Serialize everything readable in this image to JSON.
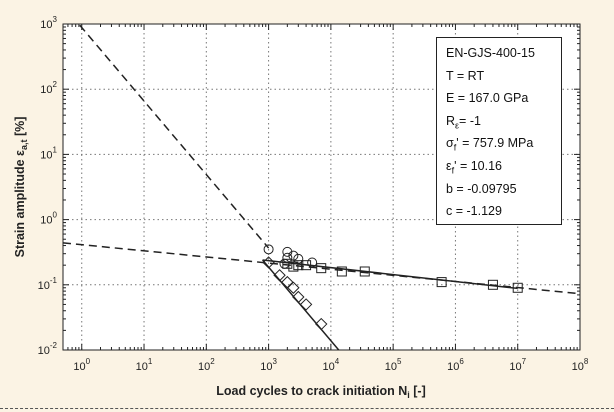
{
  "chart_data": {
    "type": "scatter",
    "x_scale": "log",
    "y_scale": "log",
    "xlim": [
      0.5,
      100000000
    ],
    "ylim": [
      0.01,
      1000
    ],
    "grid": true,
    "xlabel_main": "Load cycles to crack initiation N",
    "xlabel_sub": "i",
    "xlabel_tail": " [-]",
    "ylabel_main": "Strain amplitude ε",
    "ylabel_sub": "a,t",
    "ylabel_tail": " [%]",
    "x_tick_labels": [
      {
        "value": 1,
        "base": "10",
        "exp": "0"
      },
      {
        "value": 10,
        "base": "10",
        "exp": "1"
      },
      {
        "value": 100,
        "base": "10",
        "exp": "2"
      },
      {
        "value": 1000,
        "base": "10",
        "exp": "3"
      },
      {
        "value": 10000,
        "base": "10",
        "exp": "4"
      },
      {
        "value": 100000,
        "base": "10",
        "exp": "5"
      },
      {
        "value": 1000000,
        "base": "10",
        "exp": "6"
      },
      {
        "value": 10000000,
        "base": "10",
        "exp": "7"
      },
      {
        "value": 100000000,
        "base": "10",
        "exp": "8"
      }
    ],
    "y_tick_labels": [
      {
        "value": 1000,
        "base": "10",
        "exp": "3"
      },
      {
        "value": 100,
        "base": "10",
        "exp": "2"
      },
      {
        "value": 10,
        "base": "10",
        "exp": "1"
      },
      {
        "value": 1,
        "base": "10",
        "exp": "0"
      },
      {
        "value": 0.1,
        "base": "10",
        "exp": "-1"
      },
      {
        "value": 0.01,
        "base": "10",
        "exp": "-2"
      }
    ],
    "params": {
      "material": "EN-GJS-400-15",
      "T": "T = RT",
      "E": "E = 167.0 GPa",
      "R": "R",
      "R_sub": "ε",
      "R_val": "= -1",
      "sigma": "σ",
      "sigma_sub": "f",
      "sigma_val": "' = 757.9 MPa",
      "eps": "ε",
      "eps_sub": "f",
      "eps_val": "' = 10.16",
      "b": "b = -0.09795",
      "c": "c = -1.129"
    },
    "series": [
      {
        "marker": "circle",
        "points": [
          [
            1000,
            0.35
          ],
          [
            2000,
            0.32
          ],
          [
            2000,
            0.26
          ],
          [
            2500,
            0.28
          ],
          [
            3000,
            0.25
          ],
          [
            5000,
            0.22
          ],
          [
            1800,
            0.21
          ]
        ]
      },
      {
        "marker": "square",
        "points": [
          [
            2000,
            0.21
          ],
          [
            2500,
            0.19
          ],
          [
            3000,
            0.2
          ],
          [
            4000,
            0.2
          ],
          [
            7000,
            0.18
          ],
          [
            15000,
            0.16
          ],
          [
            35000,
            0.16
          ],
          [
            600000,
            0.11
          ],
          [
            4000000,
            0.1
          ],
          [
            10000000,
            0.09
          ]
        ]
      },
      {
        "marker": "diamond",
        "points": [
          [
            1000,
            0.22
          ],
          [
            1500,
            0.14
          ],
          [
            2000,
            0.11
          ],
          [
            2500,
            0.09
          ],
          [
            3000,
            0.065
          ],
          [
            4000,
            0.05
          ],
          [
            7000,
            0.025
          ]
        ]
      }
    ],
    "curves": [
      {
        "style": "dashed",
        "kind": "plastic",
        "from": [
          0.5,
          1930
        ],
        "to": [
          1000,
          0.366
        ]
      },
      {
        "style": "dashed",
        "kind": "elastic",
        "from": [
          0.5,
          0.44
        ],
        "to": [
          100000000,
          0.073
        ]
      },
      {
        "style": "solid",
        "kind": "plastic-fit",
        "from": [
          800,
          0.24
        ],
        "to": [
          14000,
          0.0095
        ]
      },
      {
        "style": "solid",
        "kind": "elastic-fit",
        "from": [
          800,
          0.24
        ],
        "to": [
          10000000,
          0.088
        ]
      }
    ]
  }
}
